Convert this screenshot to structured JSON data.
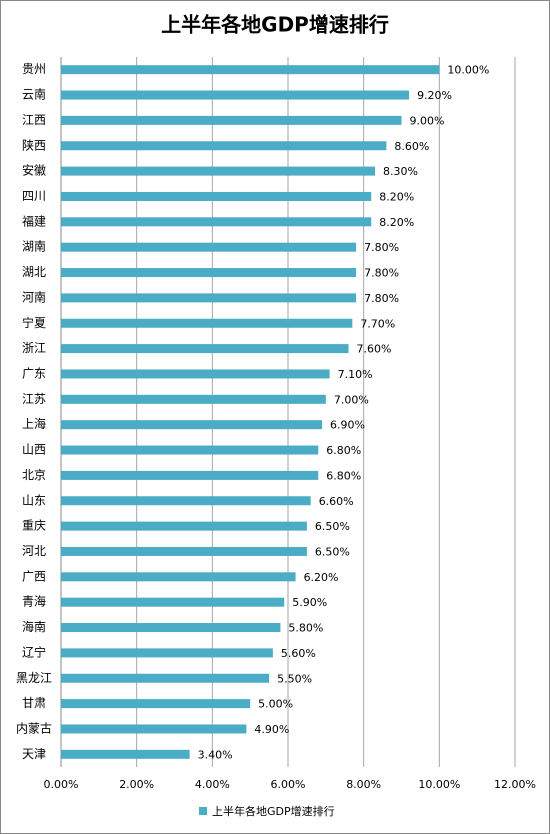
{
  "chart_data": {
    "type": "bar",
    "orientation": "horizontal",
    "title": "上半年各地GDP增速排行",
    "categories": [
      "贵州",
      "云南",
      "江西",
      "陕西",
      "安徽",
      "四川",
      "福建",
      "湖南",
      "湖北",
      "河南",
      "宁夏",
      "浙江",
      "广东",
      "江苏",
      "上海",
      "山西",
      "北京",
      "山东",
      "重庆",
      "河北",
      "广西",
      "青海",
      "海南",
      "辽宁",
      "黑龙江",
      "甘肃",
      "内蒙古",
      "天津"
    ],
    "series": [
      {
        "name": "上半年各地GDP增速排行",
        "color": "#4bacc6",
        "values": [
          10,
          9.2,
          9,
          8.6,
          8.3,
          8.2,
          8.2,
          7.8,
          7.8,
          7.8,
          7.7,
          7.6,
          7.1,
          7.0,
          6.9,
          6.8,
          6.8,
          6.6,
          6.5,
          6.5,
          6.2,
          5.9,
          5.8,
          5.6,
          5.5,
          5.0,
          4.9,
          3.4
        ],
        "value_labels": [
          "10.00%",
          "9.20%",
          "9.00%",
          "8.60%",
          "8.30%",
          "8.20%",
          "8.20%",
          "7.80%",
          "7.80%",
          "7.80%",
          "7.70%",
          "7.60%",
          "7.10%",
          "7.00%",
          "6.90%",
          "6.80%",
          "6.80%",
          "6.60%",
          "6.50%",
          "6.50%",
          "6.20%",
          "5.90%",
          "5.80%",
          "5.60%",
          "5.50%",
          "5.00%",
          "4.90%",
          "3.40%"
        ]
      }
    ],
    "xlim": [
      0,
      12
    ],
    "xticks": [
      {
        "value": 0,
        "label": "0.00%"
      },
      {
        "value": 2,
        "label": "2.00%"
      },
      {
        "value": 4,
        "label": "4.00%"
      },
      {
        "value": 6,
        "label": "6.00%"
      },
      {
        "value": 8,
        "label": "8.00%"
      },
      {
        "value": 10,
        "label": "10.00%"
      },
      {
        "value": 12,
        "label": "12.00%"
      }
    ],
    "grid": true,
    "legend": "bottom"
  }
}
